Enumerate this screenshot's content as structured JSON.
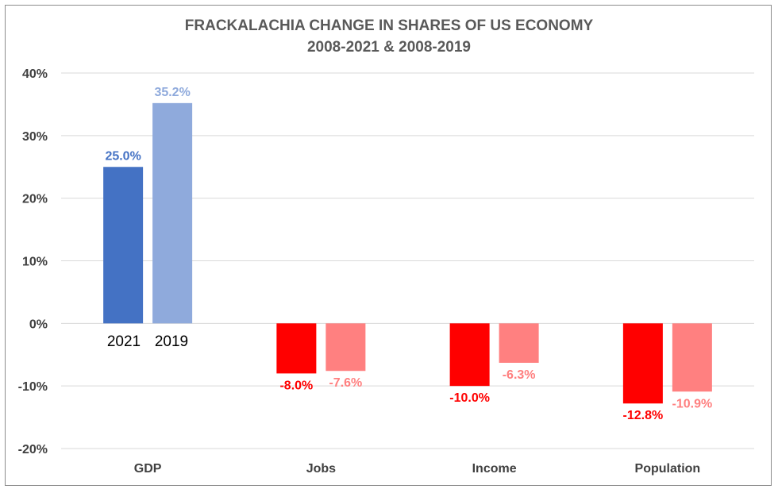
{
  "chart_data": {
    "type": "bar",
    "title": "FRACKALACHIA CHANGE IN SHARES OF US ECONOMY",
    "subtitle": "2008-2021 & 2008-2019",
    "categories": [
      "GDP",
      "Jobs",
      "Income",
      "Population"
    ],
    "series": [
      {
        "name": "2021",
        "values": [
          25.0,
          -8.0,
          -10.0,
          -12.8
        ]
      },
      {
        "name": "2019",
        "values": [
          35.2,
          -7.6,
          -6.3,
          -10.9
        ]
      }
    ],
    "data_labels": [
      [
        "25.0%",
        "-8.0%",
        "-10.0%",
        "-12.8%"
      ],
      [
        "35.2%",
        "-7.6%",
        "-6.3%",
        "-10.9%"
      ]
    ],
    "ylim": [
      -20,
      40
    ],
    "yticks": [
      {
        "value": 40,
        "label": "40%"
      },
      {
        "value": 30,
        "label": "30%"
      },
      {
        "value": 20,
        "label": "20%"
      },
      {
        "value": 10,
        "label": "10%"
      },
      {
        "value": 0,
        "label": "0%"
      },
      {
        "value": -10,
        "label": "-10%"
      },
      {
        "value": -20,
        "label": "-20%"
      }
    ],
    "colors": {
      "positive": [
        "#4472c4",
        "#8faadc"
      ],
      "negative": [
        "#ff0000",
        "#ff8080"
      ],
      "gridline": "#d9d9d9"
    },
    "grid": true,
    "legend": "none"
  }
}
